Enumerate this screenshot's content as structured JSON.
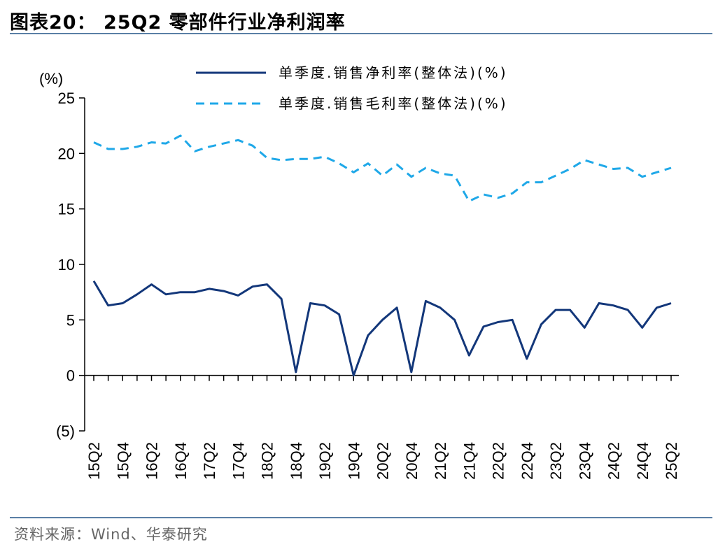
{
  "header": {
    "title": "图表20：  25Q2 零部件行业净利润率"
  },
  "footer": {
    "source": "资料来源：Wind、华泰研究"
  },
  "chart_data": {
    "type": "line",
    "title": "25Q2 零部件行业净利润率",
    "ylabel": "(%)",
    "ylim": [
      -5,
      25
    ],
    "yticks": [
      -5,
      0,
      5,
      10,
      15,
      20,
      25
    ],
    "ytick_labels": [
      "(5)",
      "0",
      "5",
      "10",
      "15",
      "20",
      "25"
    ],
    "x": [
      "15Q2",
      "15Q3",
      "15Q4",
      "16Q1",
      "16Q2",
      "16Q3",
      "16Q4",
      "17Q1",
      "17Q2",
      "17Q3",
      "17Q4",
      "18Q1",
      "18Q2",
      "18Q3",
      "18Q4",
      "19Q1",
      "19Q2",
      "19Q3",
      "19Q4",
      "20Q1",
      "20Q2",
      "20Q3",
      "20Q4",
      "21Q1",
      "21Q2",
      "21Q3",
      "21Q4",
      "22Q1",
      "22Q2",
      "22Q3",
      "22Q4",
      "23Q1",
      "23Q2",
      "23Q3",
      "23Q4",
      "24Q1",
      "24Q2",
      "24Q3",
      "24Q4",
      "25Q1",
      "25Q2"
    ],
    "xtick_labels": [
      "15Q2",
      "15Q4",
      "16Q2",
      "16Q4",
      "17Q2",
      "17Q4",
      "18Q2",
      "18Q4",
      "19Q2",
      "19Q4",
      "20Q2",
      "20Q4",
      "21Q2",
      "21Q4",
      "22Q2",
      "22Q4",
      "23Q2",
      "23Q4",
      "24Q2",
      "24Q4",
      "25Q2"
    ],
    "legend_position": "top-right",
    "series": [
      {
        "name": "单季度.销售净利率(整体法)(%)",
        "style": "solid",
        "color": "#13377a",
        "values": [
          8.5,
          6.3,
          6.5,
          7.3,
          8.2,
          7.3,
          7.5,
          7.5,
          7.8,
          7.6,
          7.2,
          8.0,
          8.2,
          6.9,
          0.3,
          6.5,
          6.3,
          5.5,
          0.0,
          3.6,
          5.0,
          6.1,
          0.3,
          6.7,
          6.1,
          5.0,
          1.8,
          4.4,
          4.8,
          5.0,
          1.5,
          4.6,
          5.9,
          5.9,
          4.3,
          6.5,
          6.3,
          5.9,
          4.3,
          6.1,
          6.5
        ]
      },
      {
        "name": "单季度.销售毛利率(整体法)(%)",
        "style": "dashed",
        "color": "#1fa8e8",
        "values": [
          21.0,
          20.4,
          20.4,
          20.6,
          21.0,
          20.9,
          21.6,
          20.2,
          20.6,
          20.9,
          21.2,
          20.7,
          19.6,
          19.4,
          19.5,
          19.5,
          19.7,
          19.1,
          18.3,
          19.1,
          18.0,
          19.0,
          17.9,
          18.7,
          18.2,
          18.0,
          15.7,
          16.3,
          16.0,
          16.4,
          17.4,
          17.4,
          18.0,
          18.6,
          19.4,
          19.0,
          18.6,
          18.7,
          17.9,
          18.3,
          18.7
        ]
      }
    ]
  }
}
